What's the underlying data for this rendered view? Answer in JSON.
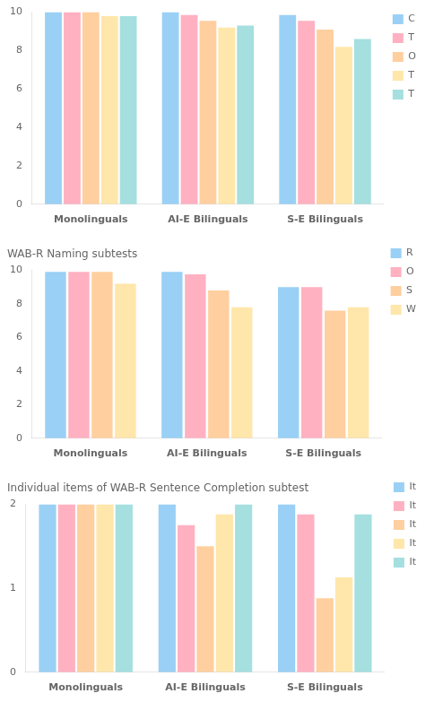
{
  "chart_data": [
    {
      "type": "bar",
      "categories": [
        "Monolinguals",
        "AI-E Bilinguals",
        "S-E Bilinguals"
      ],
      "series": [
        {
          "name": "C",
          "values": [
            10.0,
            10.0,
            9.85
          ]
        },
        {
          "name": "T",
          "values": [
            10.0,
            9.85,
            9.55
          ]
        },
        {
          "name": "O",
          "values": [
            10.0,
            9.55,
            9.1
          ]
        },
        {
          "name": "T",
          "values": [
            9.8,
            9.2,
            8.2
          ]
        },
        {
          "name": "T",
          "values": [
            9.8,
            9.3,
            8.6
          ]
        }
      ],
      "ylim": [
        0,
        10
      ],
      "yticks": [
        0,
        2,
        4,
        6,
        8,
        10
      ],
      "grid": false,
      "legend": "right"
    },
    {
      "type": "bar",
      "title": "WAB-R Naming subtests",
      "categories": [
        "Monolinguals",
        "AI-E Bilinguals",
        "S-E Bilinguals"
      ],
      "series": [
        {
          "name": "R",
          "values": [
            9.9,
            9.9,
            9.0
          ]
        },
        {
          "name": "O",
          "values": [
            9.9,
            9.75,
            9.0
          ]
        },
        {
          "name": "S",
          "values": [
            9.9,
            8.8,
            7.6
          ]
        },
        {
          "name": "W",
          "values": [
            9.2,
            7.8,
            7.8
          ]
        }
      ],
      "ylim": [
        0,
        10
      ],
      "yticks": [
        0,
        2,
        4,
        6,
        8,
        10
      ],
      "grid": false,
      "legend": "right"
    },
    {
      "type": "bar",
      "title": "Individual items of WAB-R Sentence Completion subtest",
      "categories": [
        "Monolinguals",
        "AI-E Bilinguals",
        "S-E Bilinguals"
      ],
      "series": [
        {
          "name": "It",
          "values": [
            2.0,
            2.0,
            2.0
          ]
        },
        {
          "name": "It",
          "values": [
            2.0,
            1.75,
            1.88
          ]
        },
        {
          "name": "It",
          "values": [
            2.0,
            1.5,
            0.88
          ]
        },
        {
          "name": "It",
          "values": [
            2.0,
            1.88,
            1.13
          ]
        },
        {
          "name": "It",
          "values": [
            2.0,
            2.0,
            1.88
          ]
        }
      ],
      "ylim": [
        0,
        2
      ],
      "yticks": [
        0,
        1,
        2
      ],
      "grid": false,
      "legend": "right"
    }
  ]
}
